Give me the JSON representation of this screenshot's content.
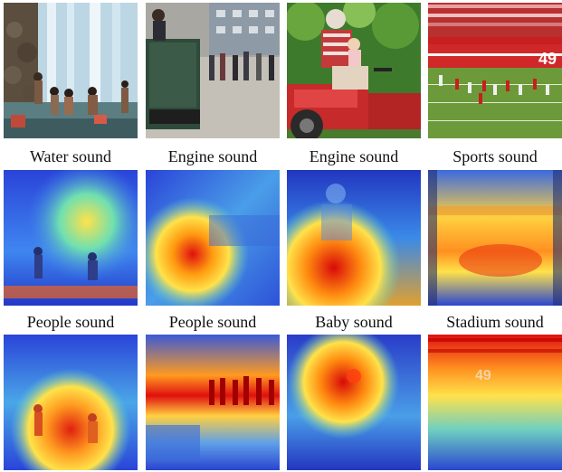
{
  "figure": {
    "row1_captions": [
      "Water sound",
      "Engine sound",
      "Engine sound",
      "Sports sound"
    ],
    "row2_captions": [
      "People sound",
      "People sound",
      "Baby sound",
      "Stadium sound"
    ],
    "columns": [
      {
        "scene": "people playing by a waterfall"
      },
      {
        "scene": "street with a motorized cart and a crowd"
      },
      {
        "scene": "man and baby on a red tractor"
      },
      {
        "scene": "football game in a stadium"
      }
    ],
    "stadium_sign_text": "49",
    "colors": {
      "heat_hot": "#e00000",
      "heat_warm": "#ffd400",
      "heat_mid": "#3fe0a0",
      "heat_cold": "#1e2fd0"
    }
  }
}
